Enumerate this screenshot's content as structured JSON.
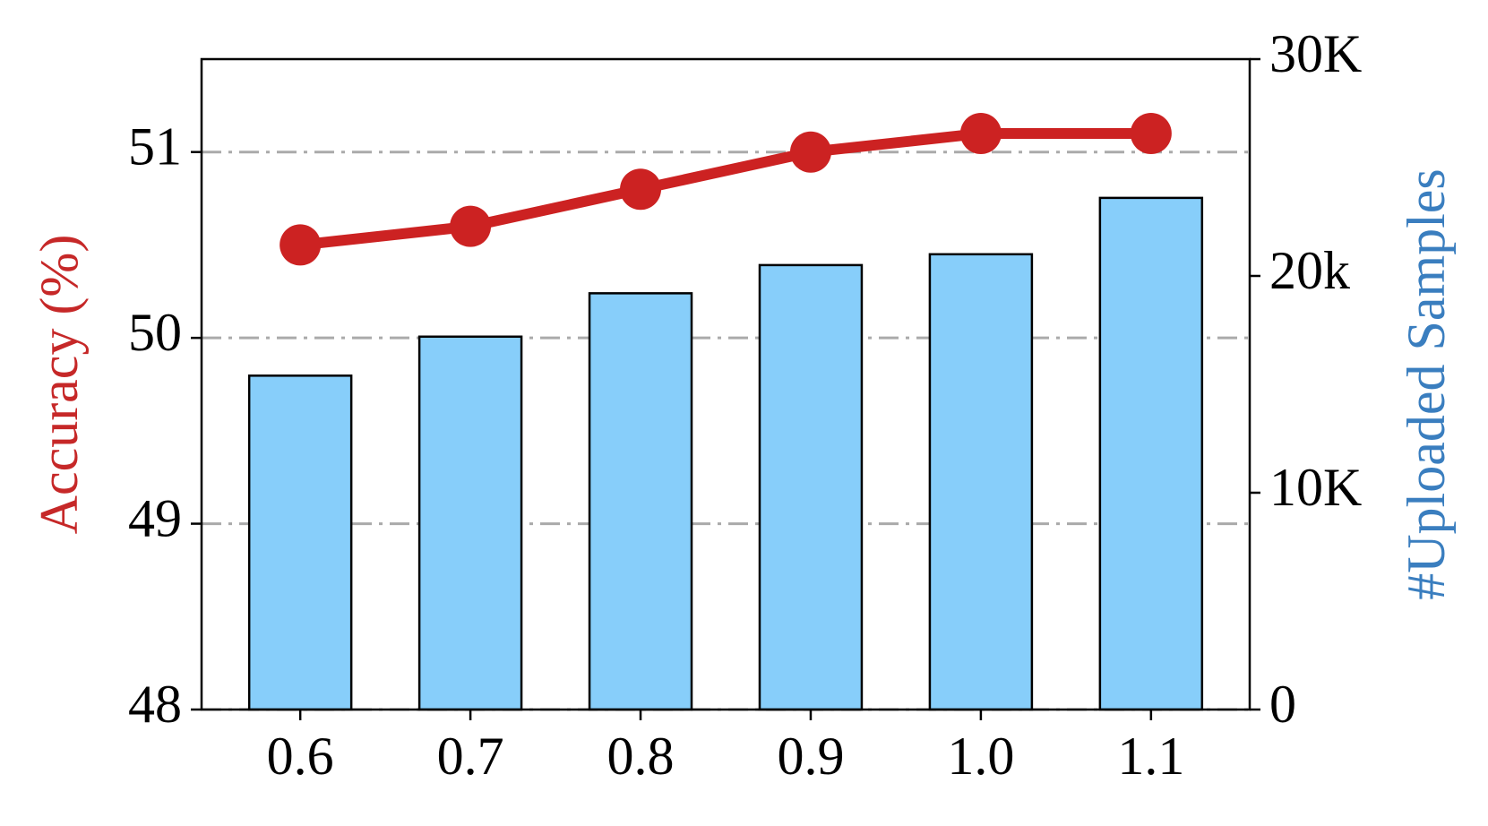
{
  "chart_data": {
    "type": "bar",
    "y_label": "Accuracy (%)",
    "y2_label": "#Uploaded Samples",
    "y_label_color": "#c62828",
    "y2_label_color": "#3a7ebf",
    "categories": [
      "0.6",
      "0.7",
      "0.8",
      "0.9",
      "1.0",
      "1.1"
    ],
    "series": [
      {
        "type": "bar",
        "axis": "y2",
        "color": "#87cefa",
        "values": [
          15400,
          17200,
          19200,
          20500,
          21000,
          23600
        ]
      },
      {
        "type": "line",
        "color": "#cc2222",
        "values": [
          50.5,
          50.6,
          50.8,
          51.0,
          51.1,
          51.1
        ]
      }
    ],
    "ylim": [
      48,
      51.5
    ],
    "yticks": [
      48,
      49,
      50,
      51
    ],
    "y2lim": [
      0,
      30000
    ],
    "y2ticks": [
      0,
      {
        "value": 10000,
        "label": "10K"
      },
      {
        "value": 20000,
        "label": "20k"
      },
      {
        "value": 30000,
        "label": "30K"
      }
    ],
    "grid": true
  }
}
